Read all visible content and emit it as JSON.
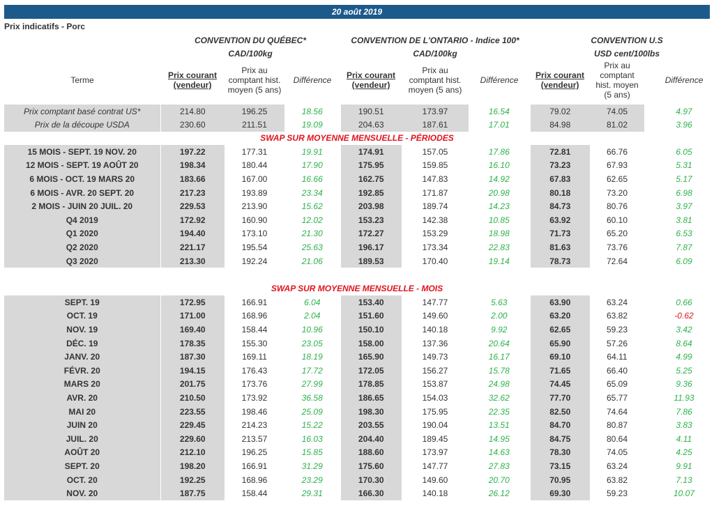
{
  "date": "20 août 2019",
  "doc_title": "Prix indicatifs - Porc",
  "conventions": [
    {
      "name": "CONVENTION DU QUÉBEC*",
      "unit": "CAD/100kg"
    },
    {
      "name": "CONVENTION DE L'ONTARIO - Indice 100*",
      "unit": "CAD/100kg"
    },
    {
      "name": "CONVENTION U.S",
      "unit": "USD cent/100lbs"
    }
  ],
  "columns": {
    "terme": "Terme",
    "current": "Prix courant (vendeur)",
    "hist_qc": "Prix au comptant hist. moyen (5 ans)",
    "hist_on": "Prix au comptant hist. moyen (5 ans)",
    "hist_us": "Prix au comptant hist. moyen (5 ans)",
    "diff": "Différence"
  },
  "basis_rows": [
    {
      "label": "Prix comptant basé contrat US*",
      "v": [
        "214.80",
        "196.25",
        "18.56",
        "190.51",
        "173.97",
        "16.54",
        "79.02",
        "74.05",
        "4.97"
      ]
    },
    {
      "label": "Prix de la découpe USDA",
      "v": [
        "230.60",
        "211.51",
        "19.09",
        "204.63",
        "187.61",
        "17.01",
        "84.98",
        "81.02",
        "3.96"
      ]
    }
  ],
  "section_periods": "SWAP SUR MOYENNE MENSUELLE - PÉRIODES",
  "period_rows": [
    {
      "label": "15 MOIS -  SEPT. 19 NOV. 20",
      "v": [
        "197.22",
        "177.31",
        "19.91",
        "174.91",
        "157.05",
        "17.86",
        "72.81",
        "66.76",
        "6.05"
      ]
    },
    {
      "label": "12 MOIS -  SEPT. 19 AOÛT 20",
      "v": [
        "198.34",
        "180.44",
        "17.90",
        "175.95",
        "159.85",
        "16.10",
        "73.23",
        "67.93",
        "5.31"
      ]
    },
    {
      "label": "6 MOIS -  OCT. 19 MARS 20",
      "v": [
        "183.66",
        "167.00",
        "16.66",
        "162.75",
        "147.83",
        "14.92",
        "67.83",
        "62.65",
        "5.17"
      ]
    },
    {
      "label": "6 MOIS -  AVR. 20 SEPT. 20",
      "v": [
        "217.23",
        "193.89",
        "23.34",
        "192.85",
        "171.87",
        "20.98",
        "80.18",
        "73.20",
        "6.98"
      ]
    },
    {
      "label": "2 MOIS -  JUIN 20  JUIL. 20",
      "v": [
        "229.53",
        "213.90",
        "15.62",
        "203.98",
        "189.74",
        "14.23",
        "84.73",
        "80.76",
        "3.97"
      ]
    },
    {
      "label": "Q4 2019",
      "v": [
        "172.92",
        "160.90",
        "12.02",
        "153.23",
        "142.38",
        "10.85",
        "63.92",
        "60.10",
        "3.81"
      ]
    },
    {
      "label": "Q1 2020",
      "v": [
        "194.40",
        "173.10",
        "21.30",
        "172.27",
        "153.29",
        "18.98",
        "71.73",
        "65.20",
        "6.53"
      ]
    },
    {
      "label": "Q2 2020",
      "v": [
        "221.17",
        "195.54",
        "25.63",
        "196.17",
        "173.34",
        "22.83",
        "81.63",
        "73.76",
        "7.87"
      ]
    },
    {
      "label": "Q3 2020",
      "v": [
        "213.30",
        "192.24",
        "21.06",
        "189.53",
        "170.40",
        "19.14",
        "78.73",
        "72.64",
        "6.09"
      ]
    }
  ],
  "section_months": "SWAP SUR MOYENNE MENSUELLE - MOIS",
  "month_rows": [
    {
      "label": "SEPT. 19",
      "v": [
        "172.95",
        "166.91",
        "6.04",
        "153.40",
        "147.77",
        "5.63",
        "63.90",
        "63.24",
        "0.66"
      ]
    },
    {
      "label": "OCT. 19",
      "v": [
        "171.00",
        "168.96",
        "2.04",
        "151.60",
        "149.60",
        "2.00",
        "63.20",
        "63.82",
        "-0.62"
      ]
    },
    {
      "label": "NOV. 19",
      "v": [
        "169.40",
        "158.44",
        "10.96",
        "150.10",
        "140.18",
        "9.92",
        "62.65",
        "59.23",
        "3.42"
      ]
    },
    {
      "label": "DÉC. 19",
      "v": [
        "178.35",
        "155.30",
        "23.05",
        "158.00",
        "137.36",
        "20.64",
        "65.90",
        "57.26",
        "8.64"
      ]
    },
    {
      "label": "JANV. 20",
      "v": [
        "187.30",
        "169.11",
        "18.19",
        "165.90",
        "149.73",
        "16.17",
        "69.10",
        "64.11",
        "4.99"
      ]
    },
    {
      "label": "FÉVR. 20",
      "v": [
        "194.15",
        "176.43",
        "17.72",
        "172.05",
        "156.27",
        "15.78",
        "71.65",
        "66.40",
        "5.25"
      ]
    },
    {
      "label": "MARS 20",
      "v": [
        "201.75",
        "173.76",
        "27.99",
        "178.85",
        "153.87",
        "24.98",
        "74.45",
        "65.09",
        "9.36"
      ]
    },
    {
      "label": "AVR. 20",
      "v": [
        "210.50",
        "173.92",
        "36.58",
        "186.65",
        "154.03",
        "32.62",
        "77.70",
        "65.77",
        "11.93"
      ]
    },
    {
      "label": "MAI 20",
      "v": [
        "223.55",
        "198.46",
        "25.09",
        "198.30",
        "175.95",
        "22.35",
        "82.50",
        "74.64",
        "7.86"
      ]
    },
    {
      "label": "JUIN 20",
      "v": [
        "229.45",
        "214.23",
        "15.22",
        "203.55",
        "190.04",
        "13.51",
        "84.70",
        "80.87",
        "3.83"
      ]
    },
    {
      "label": "JUIL. 20",
      "v": [
        "229.60",
        "213.57",
        "16.03",
        "204.40",
        "189.45",
        "14.95",
        "84.75",
        "80.64",
        "4.11"
      ]
    },
    {
      "label": "AOÛT 20",
      "v": [
        "212.10",
        "196.25",
        "15.85",
        "188.60",
        "173.97",
        "14.63",
        "78.30",
        "74.05",
        "4.25"
      ]
    },
    {
      "label": "SEPT. 20",
      "v": [
        "198.20",
        "166.91",
        "31.29",
        "175.60",
        "147.77",
        "27.83",
        "73.15",
        "63.24",
        "9.91"
      ]
    },
    {
      "label": "OCT. 20",
      "v": [
        "192.25",
        "168.96",
        "23.29",
        "170.30",
        "149.60",
        "20.70",
        "70.95",
        "63.82",
        "7.13"
      ]
    },
    {
      "label": "NOV. 20",
      "v": [
        "187.75",
        "158.44",
        "29.31",
        "166.30",
        "140.18",
        "26.12",
        "69.30",
        "59.23",
        "10.07"
      ]
    }
  ],
  "colors": {
    "header_bg": "#1c5a8c",
    "positive": "#2db24a",
    "negative": "#e0141e",
    "section_title": "#e0141e",
    "shade": "#d8d8d8"
  }
}
